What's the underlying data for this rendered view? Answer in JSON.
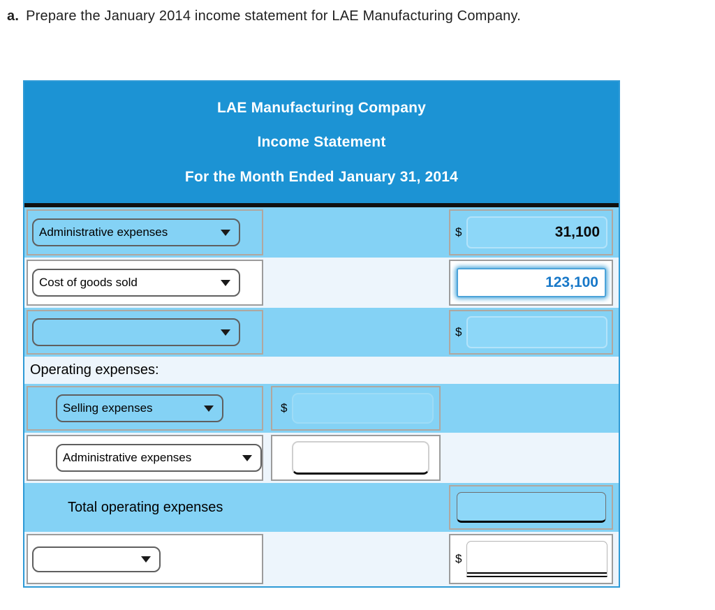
{
  "instruction": {
    "prefix": "a.",
    "text": "Prepare the January 2014 income statement for LAE Manufacturing Company."
  },
  "header": {
    "company": "LAE Manufacturing Company",
    "title": "Income Statement",
    "period": "For the Month Ended January 31, 2014"
  },
  "rows": [
    {
      "dropdown_value": "Administrative expenses",
      "currency": "$",
      "amount": "31,100"
    },
    {
      "dropdown_value": "Cost of goods sold",
      "amount": "123,100"
    },
    {
      "dropdown_value": "",
      "currency": "$",
      "amount": ""
    },
    {
      "label": "Operating expenses:"
    },
    {
      "dropdown_value": "Selling expenses",
      "currency": "$",
      "amount": ""
    },
    {
      "dropdown_value": "Administrative expenses",
      "amount": ""
    },
    {
      "label": "Total operating expenses",
      "amount": ""
    },
    {
      "dropdown_value": "",
      "currency": "$",
      "amount": ""
    }
  ],
  "colors": {
    "header_bg": "#1c93d4",
    "row_blue": "#84d2f5",
    "row_pale": "#edf5fc",
    "table_border": "#2e9ad6",
    "focus_ring": "#2e9ad6",
    "amount_text": "#000000",
    "focused_amount_text": "#1878c8"
  }
}
